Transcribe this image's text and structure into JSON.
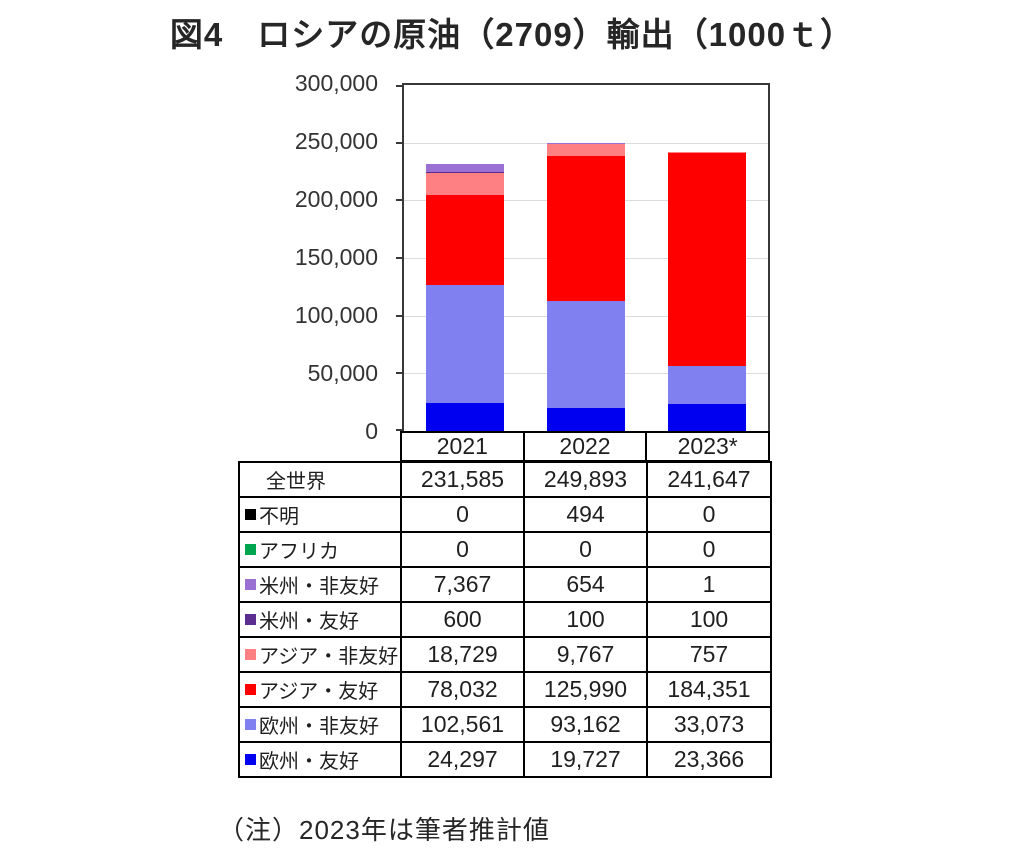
{
  "title": "図4　ロシアの原油（2709）輸出（1000ｔ）",
  "note": "（注）2023年は筆者推計値",
  "chart_data": {
    "type": "bar",
    "stacked": true,
    "title": "図4　ロシアの原油（2709）輸出（1000ｔ）",
    "unit": "1000 t",
    "categories": [
      "2021",
      "2022",
      "2023*"
    ],
    "ylim": [
      0,
      300000
    ],
    "ytick_interval": 50000,
    "ytick_labels": [
      "300,000",
      "250,000",
      "200,000",
      "150,000",
      "100,000",
      "50,000",
      "0"
    ],
    "grid": true,
    "legend_position": "table-below",
    "series": [
      {
        "name": "欧州・友好",
        "color": "#0000f0",
        "values": [
          24297,
          19727,
          23366
        ]
      },
      {
        "name": "欧州・非友好",
        "color": "#8080f0",
        "values": [
          102561,
          93162,
          33073
        ]
      },
      {
        "name": "アジア・友好",
        "color": "#ff0000",
        "values": [
          78032,
          125990,
          184351
        ]
      },
      {
        "name": "アジア・非友好",
        "color": "#ff8082",
        "values": [
          18729,
          9767,
          757
        ]
      },
      {
        "name": "米州・友好",
        "color": "#5b2d90",
        "values": [
          600,
          100,
          100
        ]
      },
      {
        "name": "米州・非友好",
        "color": "#9a70d2",
        "values": [
          7367,
          654,
          1
        ]
      },
      {
        "name": "アフリカ",
        "color": "#00a550",
        "values": [
          0,
          0,
          0
        ]
      },
      {
        "name": "不明",
        "color": "#000000",
        "values": [
          0,
          494,
          0
        ]
      }
    ],
    "totals": {
      "label": "全世界",
      "values": [
        231585,
        249893,
        241647
      ]
    }
  },
  "table": {
    "year_headers": [
      "2021",
      "2022",
      "2023*"
    ],
    "rows": [
      {
        "label": "全世界",
        "swatch": null,
        "values": [
          "231,585",
          "249,893",
          "241,647"
        ]
      },
      {
        "label": "不明",
        "swatch": "#000000",
        "values": [
          "0",
          "494",
          "0"
        ]
      },
      {
        "label": "アフリカ",
        "swatch": "#00a550",
        "values": [
          "0",
          "0",
          "0"
        ]
      },
      {
        "label": "米州・非友好",
        "swatch": "#9a70d2",
        "values": [
          "7,367",
          "654",
          "1"
        ]
      },
      {
        "label": "米州・友好",
        "swatch": "#5b2d90",
        "values": [
          "600",
          "100",
          "100"
        ]
      },
      {
        "label": "アジア・非友好",
        "swatch": "#ff8082",
        "values": [
          "18,729",
          "9,767",
          "757"
        ]
      },
      {
        "label": "アジア・友好",
        "swatch": "#ff0000",
        "values": [
          "78,032",
          "125,990",
          "184,351"
        ]
      },
      {
        "label": "欧州・非友好",
        "swatch": "#8080f0",
        "values": [
          "102,561",
          "93,162",
          "33,073"
        ]
      },
      {
        "label": "欧州・友好",
        "swatch": "#0000f0",
        "values": [
          "24,297",
          "19,727",
          "23,366"
        ]
      }
    ]
  }
}
